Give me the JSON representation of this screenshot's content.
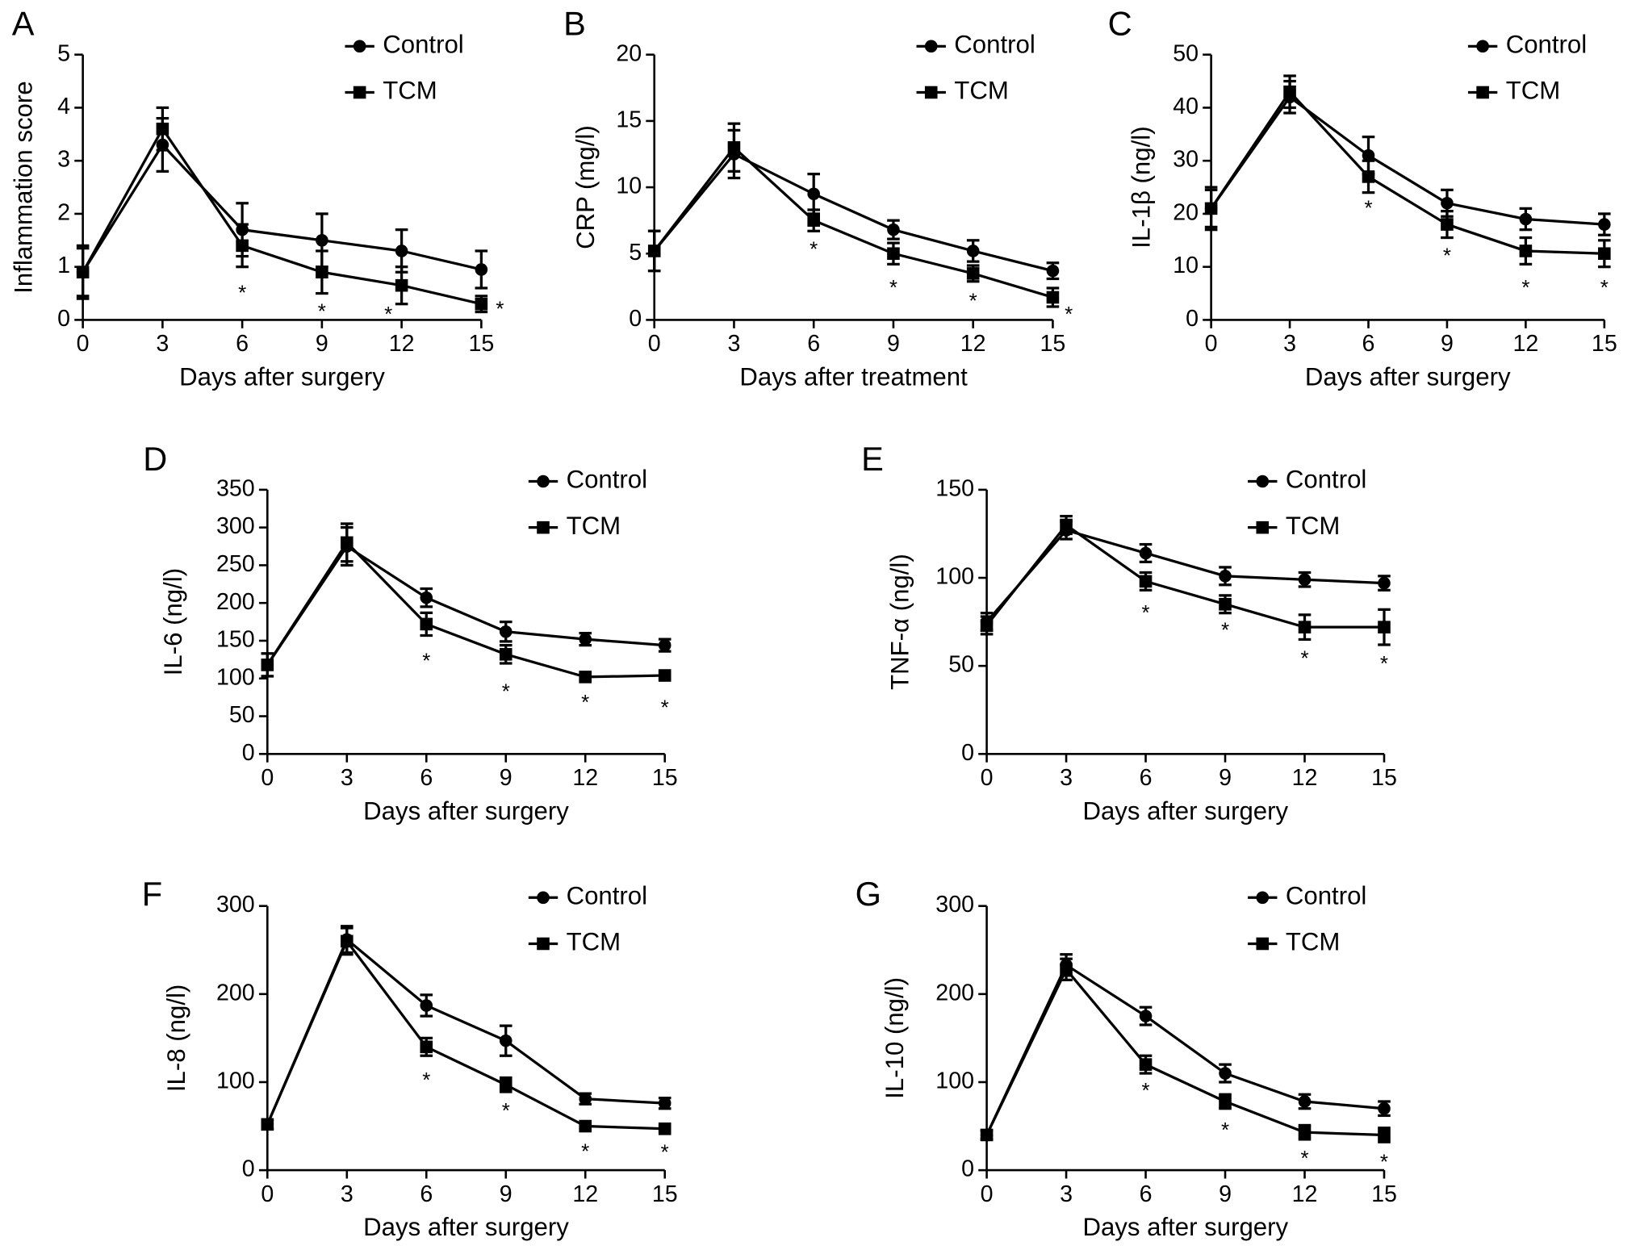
{
  "chart_data": [
    {
      "type": "line",
      "panel": "A",
      "ylabel": "Inflammation score",
      "xlabel": "Days after surgery",
      "legend": "upper right",
      "x": [
        0,
        3,
        6,
        9,
        12,
        15
      ],
      "xlim": [
        0,
        15
      ],
      "xticks": [
        0,
        3,
        6,
        9,
        12,
        15
      ],
      "ylim": [
        0,
        5
      ],
      "yticks": [
        0,
        1,
        2,
        3,
        4,
        5
      ],
      "series": [
        {
          "name": "Control",
          "color": "#000000",
          "marker": "circle",
          "values": [
            0.9,
            3.3,
            1.7,
            1.5,
            1.3,
            0.95
          ],
          "errors": [
            0.45,
            0.5,
            0.5,
            0.5,
            0.4,
            0.35
          ]
        },
        {
          "name": "TCM",
          "color": "#000000",
          "marker": "square",
          "values": [
            0.9,
            3.6,
            1.4,
            0.9,
            0.65,
            0.3
          ],
          "errors": [
            0.5,
            0.4,
            0.4,
            0.4,
            0.35,
            0.15
          ]
        }
      ],
      "significance": [
        {
          "x": 6,
          "y": 0.6,
          "label": "*"
        },
        {
          "x": 9,
          "y": 0.25,
          "label": "*"
        },
        {
          "x": 11.5,
          "y": 0.2,
          "label": "*"
        },
        {
          "x": 15.7,
          "y": 0.3,
          "label": "*"
        }
      ]
    },
    {
      "type": "line",
      "panel": "B",
      "ylabel": "CRP (mg/l)",
      "xlabel": "Days after treatment",
      "legend": "upper right",
      "x": [
        0,
        3,
        6,
        9,
        12,
        15
      ],
      "xlim": [
        0,
        15
      ],
      "xticks": [
        0,
        3,
        6,
        9,
        12,
        15
      ],
      "ylim": [
        0,
        20
      ],
      "yticks": [
        0,
        5,
        10,
        15,
        20
      ],
      "series": [
        {
          "name": "Control",
          "color": "#000000",
          "marker": "circle",
          "values": [
            5.2,
            12.5,
            9.5,
            6.8,
            5.2,
            3.7
          ],
          "errors": [
            1.5,
            1.8,
            1.5,
            0.7,
            0.8,
            0.6
          ]
        },
        {
          "name": "TCM",
          "color": "#000000",
          "marker": "square",
          "values": [
            5.2,
            13,
            7.5,
            5,
            3.5,
            1.7
          ],
          "errors": [
            1.5,
            1.8,
            0.8,
            0.8,
            0.6,
            0.7
          ]
        }
      ],
      "significance": [
        {
          "x": 6,
          "y": 5.7,
          "label": "*"
        },
        {
          "x": 9,
          "y": 2.8,
          "label": "*"
        },
        {
          "x": 12,
          "y": 1.8,
          "label": "*"
        },
        {
          "x": 15.6,
          "y": 0.8,
          "label": "*"
        }
      ]
    },
    {
      "type": "line",
      "panel": "C",
      "ylabel": "IL-1β (ng/l)",
      "xlabel": "Days after surgery",
      "legend": "upper right",
      "x": [
        0,
        3,
        6,
        9,
        12,
        15
      ],
      "xlim": [
        0,
        15
      ],
      "xticks": [
        0,
        3,
        6,
        9,
        12,
        15
      ],
      "ylim": [
        0,
        50
      ],
      "yticks": [
        0,
        10,
        20,
        30,
        40,
        50
      ],
      "series": [
        {
          "name": "Control",
          "color": "#000000",
          "marker": "circle",
          "values": [
            21,
            42,
            31,
            22,
            19,
            18
          ],
          "errors": [
            3.5,
            3,
            3.5,
            2.5,
            2,
            2
          ]
        },
        {
          "name": "TCM",
          "color": "#000000",
          "marker": "square",
          "values": [
            21,
            43,
            27,
            18,
            13,
            12.5
          ],
          "errors": [
            4,
            3,
            3,
            2.5,
            2.5,
            2.5
          ]
        }
      ],
      "significance": [
        {
          "x": 6,
          "y": 22,
          "label": "*"
        },
        {
          "x": 9,
          "y": 13,
          "label": "*"
        },
        {
          "x": 12,
          "y": 7,
          "label": "*"
        },
        {
          "x": 15,
          "y": 7,
          "label": "*"
        }
      ]
    },
    {
      "type": "line",
      "panel": "D",
      "ylabel": "IL-6 (ng/l)",
      "xlabel": "Days after surgery",
      "legend": "upper right",
      "x": [
        0,
        3,
        6,
        9,
        12,
        15
      ],
      "xlim": [
        0,
        15
      ],
      "xticks": [
        0,
        3,
        6,
        9,
        12,
        15
      ],
      "ylim": [
        0,
        350
      ],
      "yticks": [
        0,
        50,
        100,
        150,
        200,
        250,
        300,
        350
      ],
      "series": [
        {
          "name": "Control",
          "color": "#000000",
          "marker": "circle",
          "values": [
            118,
            275,
            207,
            162,
            152,
            144
          ],
          "errors": [
            15,
            25,
            12,
            13,
            8,
            8
          ]
        },
        {
          "name": "TCM",
          "color": "#000000",
          "marker": "square",
          "values": [
            118,
            280,
            172,
            132,
            102,
            104
          ],
          "errors": [
            15,
            25,
            15,
            12,
            5,
            5
          ]
        }
      ],
      "significance": [
        {
          "x": 6,
          "y": 130,
          "label": "*"
        },
        {
          "x": 9,
          "y": 89,
          "label": "*"
        },
        {
          "x": 12,
          "y": 75,
          "label": "*"
        },
        {
          "x": 15,
          "y": 68,
          "label": "*"
        }
      ]
    },
    {
      "type": "line",
      "panel": "E",
      "ylabel": "TNF-α (ng/l)",
      "xlabel": "Days after surgery",
      "legend": "upper right",
      "x": [
        0,
        3,
        6,
        9,
        12,
        15
      ],
      "xlim": [
        0,
        15
      ],
      "xticks": [
        0,
        3,
        6,
        9,
        12,
        15
      ],
      "ylim": [
        0,
        150
      ],
      "yticks": [
        0,
        50,
        100,
        150
      ],
      "series": [
        {
          "name": "Control",
          "color": "#000000",
          "marker": "circle",
          "values": [
            75,
            127,
            114,
            101,
            99,
            97
          ],
          "errors": [
            5,
            5,
            5,
            5,
            4,
            4
          ]
        },
        {
          "name": "TCM",
          "color": "#000000",
          "marker": "square",
          "values": [
            73,
            130,
            98,
            85,
            72,
            72
          ],
          "errors": [
            5,
            5,
            5,
            5,
            7,
            10
          ]
        }
      ],
      "significance": [
        {
          "x": 6,
          "y": 83,
          "label": "*"
        },
        {
          "x": 9,
          "y": 73,
          "label": "*"
        },
        {
          "x": 12,
          "y": 57,
          "label": "*"
        },
        {
          "x": 15,
          "y": 54,
          "label": "*"
        }
      ]
    },
    {
      "type": "line",
      "panel": "F",
      "ylabel": "IL-8 (ng/l)",
      "xlabel": "Days after surgery",
      "legend": "upper right",
      "x": [
        0,
        3,
        6,
        9,
        12,
        15
      ],
      "xlim": [
        0,
        15
      ],
      "xticks": [
        0,
        3,
        6,
        9,
        12,
        15
      ],
      "ylim": [
        0,
        300
      ],
      "yticks": [
        0,
        100,
        200,
        300
      ],
      "series": [
        {
          "name": "Control",
          "color": "#000000",
          "marker": "circle",
          "values": [
            52,
            262,
            187,
            147,
            81,
            76
          ],
          "errors": [
            5,
            15,
            12,
            17,
            6,
            6
          ]
        },
        {
          "name": "TCM",
          "color": "#000000",
          "marker": "square",
          "values": [
            52,
            260,
            140,
            97,
            50,
            47
          ],
          "errors": [
            5,
            15,
            10,
            8,
            3,
            3
          ]
        }
      ],
      "significance": [
        {
          "x": 6,
          "y": 108,
          "label": "*"
        },
        {
          "x": 9,
          "y": 73,
          "label": "*"
        },
        {
          "x": 12,
          "y": 27,
          "label": "*"
        },
        {
          "x": 15,
          "y": 26,
          "label": "*"
        }
      ]
    },
    {
      "type": "line",
      "panel": "G",
      "ylabel": "IL-10 (ng/l)",
      "xlabel": "Days after surgery",
      "legend": "upper right",
      "x": [
        0,
        3,
        6,
        9,
        12,
        15
      ],
      "xlim": [
        0,
        15
      ],
      "xticks": [
        0,
        3,
        6,
        9,
        12,
        15
      ],
      "ylim": [
        0,
        300
      ],
      "yticks": [
        0,
        100,
        200,
        300
      ],
      "series": [
        {
          "name": "Control",
          "color": "#000000",
          "marker": "circle",
          "values": [
            40,
            233,
            175,
            110,
            78,
            70
          ],
          "errors": [
            5,
            12,
            10,
            10,
            8,
            8
          ]
        },
        {
          "name": "TCM",
          "color": "#000000",
          "marker": "square",
          "values": [
            40,
            228,
            120,
            78,
            43,
            40
          ],
          "errors": [
            5,
            12,
            10,
            8,
            8,
            8
          ]
        }
      ],
      "significance": [
        {
          "x": 6,
          "y": 96,
          "label": "*"
        },
        {
          "x": 9,
          "y": 51,
          "label": "*"
        },
        {
          "x": 12,
          "y": 19,
          "label": "*"
        },
        {
          "x": 15,
          "y": 15,
          "label": "*"
        }
      ]
    }
  ]
}
